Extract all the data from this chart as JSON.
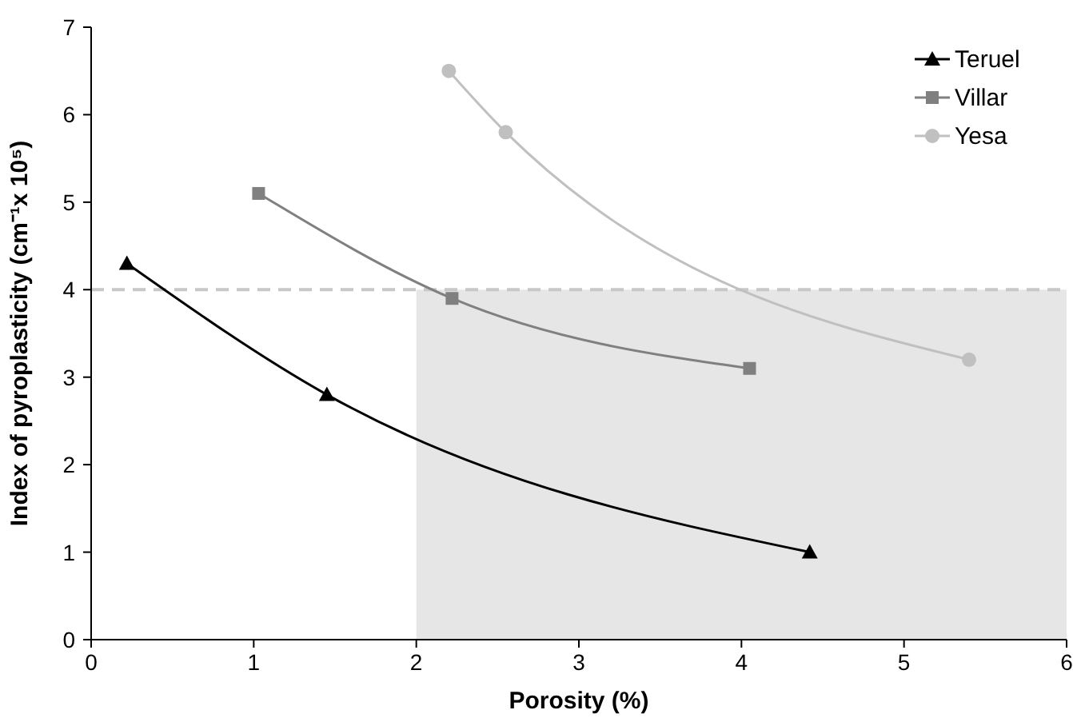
{
  "chart_data": {
    "type": "line",
    "xlabel": "Porosity (%)",
    "ylabel": "Index of pyroplasticity (cm⁻¹x 10⁵)",
    "xlim": [
      0,
      6
    ],
    "xticks": [
      0,
      1,
      2,
      3,
      4,
      5,
      6
    ],
    "ylim": [
      0,
      7
    ],
    "yticks": [
      0,
      1,
      2,
      3,
      4,
      5,
      6,
      7
    ],
    "grid": false,
    "legend": "top right",
    "line_style": "solid",
    "series": [
      {
        "name": "Teruel",
        "color": "#000000",
        "marker": "triangle",
        "x": [
          0.22,
          1.45,
          4.42
        ],
        "values": [
          4.3,
          2.8,
          1.0
        ]
      },
      {
        "name": "Villar",
        "color": "#808080",
        "marker": "square",
        "x": [
          1.03,
          2.22,
          4.05
        ],
        "values": [
          5.1,
          3.9,
          3.1
        ]
      },
      {
        "name": "Yesa",
        "color": "#c0c0c0",
        "marker": "circle",
        "x": [
          2.2,
          2.55,
          5.4
        ],
        "values": [
          6.5,
          5.8,
          3.2
        ]
      }
    ],
    "ref_lines": [
      {
        "axis": "y",
        "value": 4,
        "color": "#c8c8c8",
        "line_style": "dashed"
      }
    ],
    "bands": [
      {
        "axis": "x",
        "from": 2,
        "to": 6,
        "color": "#e6e6e6"
      }
    ]
  }
}
